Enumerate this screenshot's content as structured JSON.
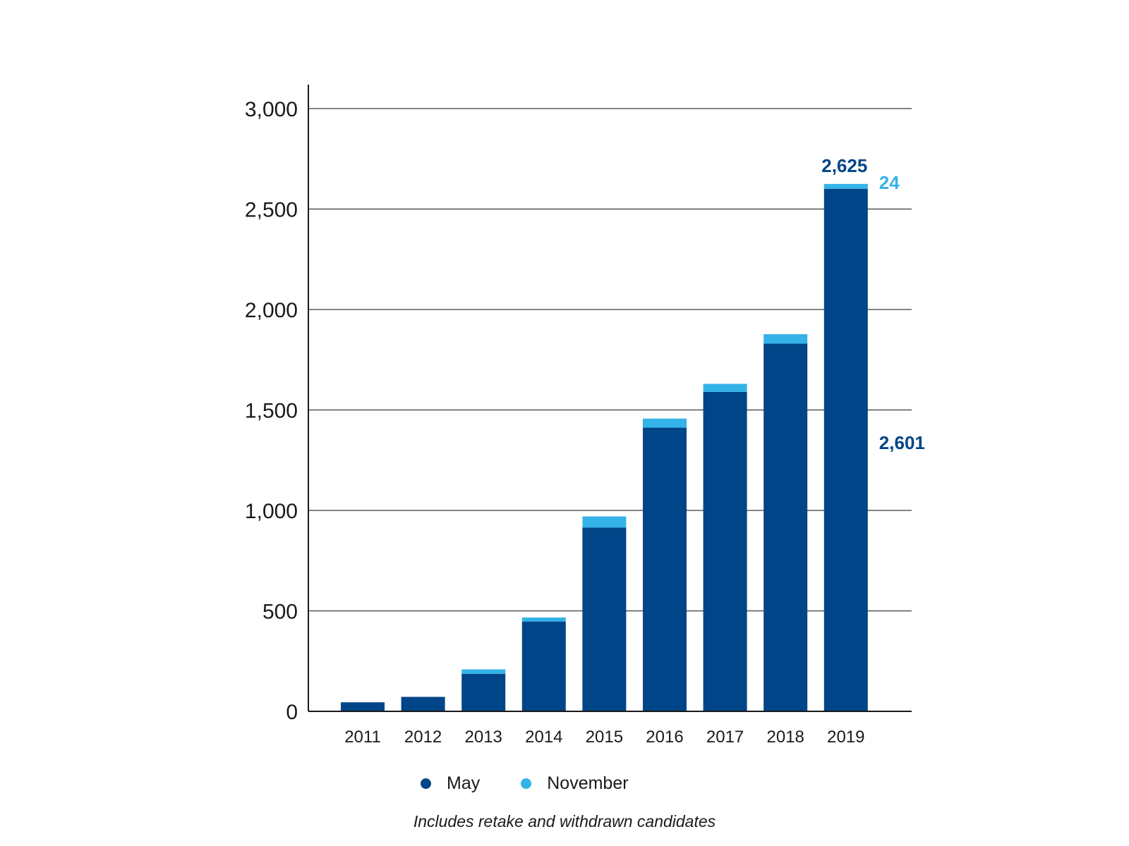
{
  "chart_data": {
    "type": "bar",
    "stacked": true,
    "categories": [
      "2011",
      "2012",
      "2013",
      "2014",
      "2015",
      "2016",
      "2017",
      "2018",
      "2019"
    ],
    "series": [
      {
        "name": "May",
        "color": "#004587",
        "values": [
          45,
          72,
          187,
          447,
          915,
          1412,
          1590,
          1830,
          2601
        ]
      },
      {
        "name": "November",
        "color": "#33b3e8",
        "values": [
          0,
          0,
          22,
          20,
          55,
          45,
          40,
          47,
          24
        ]
      }
    ],
    "ylim": [
      0,
      3000
    ],
    "yticks": [
      "0",
      "500",
      "1,000",
      "1,500",
      "2,000",
      "2,500",
      "3,000"
    ],
    "ytick_values": [
      0,
      500,
      1000,
      1500,
      2000,
      2500,
      3000
    ],
    "grid": true,
    "legend_position": "bottom",
    "title": "",
    "xlabel": "",
    "ylabel": "",
    "annotations": [
      {
        "text": "2,625",
        "category": "2019",
        "value": 2625,
        "color": "#004587"
      },
      {
        "text": "24",
        "category": "2019",
        "value": 24,
        "color": "#33b3e8"
      },
      {
        "text": "2,601",
        "category": "2019",
        "value": 2601,
        "color": "#004587"
      }
    ],
    "footnote": "Includes retake and withdrawn candidates"
  }
}
